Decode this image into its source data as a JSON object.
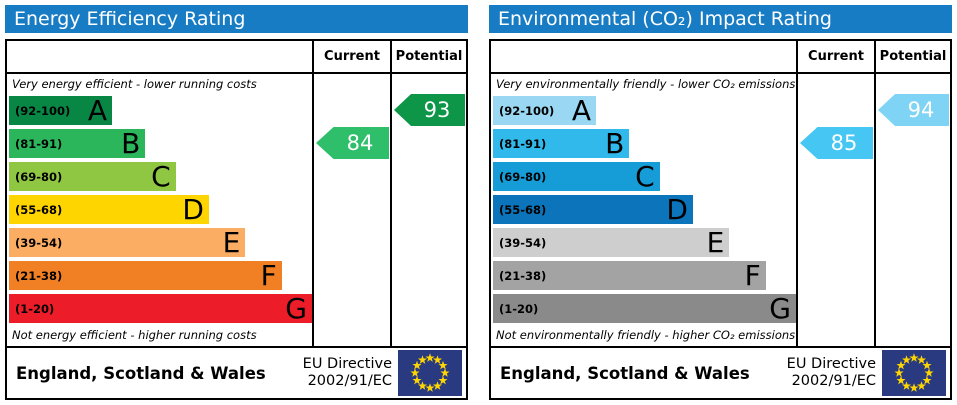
{
  "colors": {
    "header_bg": "#187cc4",
    "border": "#000000",
    "flag_bg": "#293a80",
    "flag_star": "#ffd500"
  },
  "panels": [
    {
      "title": "Energy Efficiency Rating",
      "column_headers": {
        "current": "Current",
        "potential": "Potential"
      },
      "top_note": "Very energy efficient - lower running costs",
      "bottom_note": "Not energy efficient - higher running costs",
      "bands": [
        {
          "range": "(92-100)",
          "letter": "A",
          "color": "#088644",
          "width": 34
        },
        {
          "range": "(81-91)",
          "letter": "B",
          "color": "#2cb65c",
          "width": 45
        },
        {
          "range": "(69-80)",
          "letter": "C",
          "color": "#8fc743",
          "width": 55
        },
        {
          "range": "(55-68)",
          "letter": "D",
          "color": "#ffd500",
          "width": 66
        },
        {
          "range": "(39-54)",
          "letter": "E",
          "color": "#fbad64",
          "width": 78
        },
        {
          "range": "(21-38)",
          "letter": "F",
          "color": "#f08023",
          "width": 90
        },
        {
          "range": "(1-20)",
          "letter": "G",
          "color": "#ed1c29",
          "width": 100
        }
      ],
      "current": {
        "value": "84",
        "band": "B",
        "color": "#2fbe6a"
      },
      "potential": {
        "value": "93",
        "band": "A",
        "color": "#0d9648"
      },
      "footer": {
        "region": "England, Scotland & Wales",
        "directive_line1": "EU Directive",
        "directive_line2": "2002/91/EC"
      }
    },
    {
      "title": "Environmental (CO₂) Impact Rating",
      "column_headers": {
        "current": "Current",
        "potential": "Potential"
      },
      "top_note": "Very environmentally friendly - lower CO₂ emissions",
      "bottom_note": "Not environmentally friendly - higher CO₂ emissions",
      "bands": [
        {
          "range": "(92-100)",
          "letter": "A",
          "color": "#9ad7f2",
          "width": 34
        },
        {
          "range": "(81-91)",
          "letter": "B",
          "color": "#30b9ea",
          "width": 45
        },
        {
          "range": "(69-80)",
          "letter": "C",
          "color": "#169dd8",
          "width": 55
        },
        {
          "range": "(55-68)",
          "letter": "D",
          "color": "#0c74bb",
          "width": 66
        },
        {
          "range": "(39-54)",
          "letter": "E",
          "color": "#cecece",
          "width": 78
        },
        {
          "range": "(21-38)",
          "letter": "F",
          "color": "#a3a3a3",
          "width": 90
        },
        {
          "range": "(1-20)",
          "letter": "G",
          "color": "#8a8a8a",
          "width": 100
        }
      ],
      "current": {
        "value": "85",
        "band": "B",
        "color": "#45c6f3"
      },
      "potential": {
        "value": "94",
        "band": "A",
        "color": "#7fd4f5"
      },
      "footer": {
        "region": "England, Scotland & Wales",
        "directive_line1": "EU Directive",
        "directive_line2": "2002/91/EC"
      }
    }
  ],
  "chart_data": [
    {
      "type": "bar",
      "title": "Energy Efficiency Rating",
      "categories": [
        "A (92-100)",
        "B (81-91)",
        "C (69-80)",
        "D (55-68)",
        "E (39-54)",
        "F (21-38)",
        "G (1-20)"
      ],
      "values": [
        34,
        45,
        55,
        66,
        78,
        90,
        100
      ],
      "series": [
        {
          "name": "Current",
          "value": 84,
          "band": "B"
        },
        {
          "name": "Potential",
          "value": 93,
          "band": "A"
        }
      ],
      "xlabel": "",
      "ylabel": "",
      "xlim": [
        1,
        100
      ],
      "top_annotation": "Very energy efficient - lower running costs",
      "bottom_annotation": "Not energy efficient - higher running costs"
    },
    {
      "type": "bar",
      "title": "Environmental (CO₂) Impact Rating",
      "categories": [
        "A (92-100)",
        "B (81-91)",
        "C (69-80)",
        "D (55-68)",
        "E (39-54)",
        "F (21-38)",
        "G (1-20)"
      ],
      "values": [
        34,
        45,
        55,
        66,
        78,
        90,
        100
      ],
      "series": [
        {
          "name": "Current",
          "value": 85,
          "band": "B"
        },
        {
          "name": "Potential",
          "value": 94,
          "band": "A"
        }
      ],
      "xlabel": "",
      "ylabel": "",
      "xlim": [
        1,
        100
      ],
      "top_annotation": "Very environmentally friendly - lower CO₂ emissions",
      "bottom_annotation": "Not environmentally friendly - higher CO₂ emissions"
    }
  ]
}
